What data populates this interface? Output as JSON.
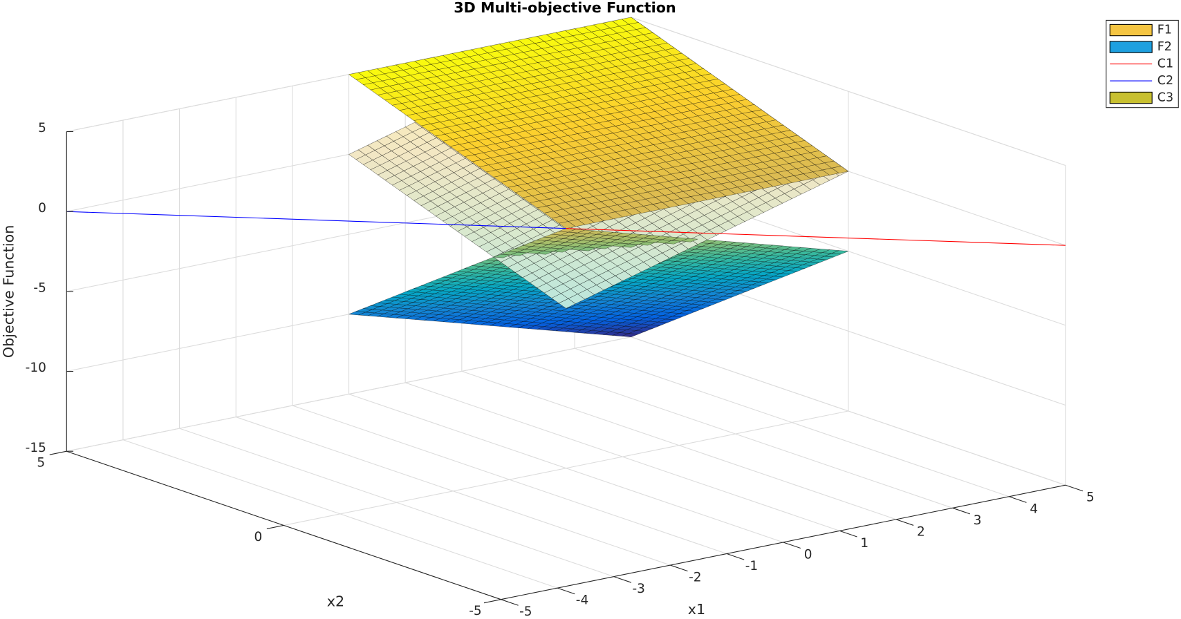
{
  "chart_data": {
    "type": "surface3d",
    "title": "3D Multi-objective Function",
    "xlabel": "x1",
    "ylabel": "x2",
    "zlabel": "Objective Function",
    "xlim": [
      -5,
      5
    ],
    "ylim": [
      -5,
      5
    ],
    "zlim": [
      -15,
      5
    ],
    "xticks": [
      -5,
      -4,
      -3,
      -2,
      -1,
      0,
      1,
      2,
      3,
      4,
      5
    ],
    "yticks": [
      -5,
      0,
      5
    ],
    "zticks": [
      -15,
      -10,
      -5,
      0,
      5
    ],
    "grid": true,
    "colormap": "parula",
    "legend": "northeast",
    "series": [
      {
        "name": "F1",
        "type": "surface",
        "color": "#f5c542",
        "x": [
          0,
          5
        ],
        "y": [
          0,
          5
        ],
        "z": [
          [
            0,
            0
          ],
          [
            5,
            5
          ]
        ]
      },
      {
        "name": "F2",
        "type": "surface",
        "color": "#1ea0e0",
        "x": [
          0,
          5
        ],
        "y": [
          0,
          5
        ],
        "z": [
          [
            0,
            -5
          ],
          [
            -10,
            -15
          ]
        ]
      },
      {
        "name": "C1",
        "type": "line",
        "color": "#ff0000",
        "x": [
          0,
          5
        ],
        "y": [
          0,
          -5
        ],
        "z": [
          0,
          0
        ]
      },
      {
        "name": "C2",
        "type": "line",
        "color": "#0000ff",
        "x": [
          -5,
          0
        ],
        "y": [
          5,
          0
        ],
        "z": [
          0,
          0
        ]
      },
      {
        "name": "C3",
        "type": "surface",
        "color": "#c8c030",
        "face_alpha": 0.35,
        "x": [
          0,
          5
        ],
        "y": [
          0,
          5
        ],
        "z": [
          [
            -5,
            0
          ],
          [
            0,
            5
          ]
        ]
      }
    ]
  }
}
